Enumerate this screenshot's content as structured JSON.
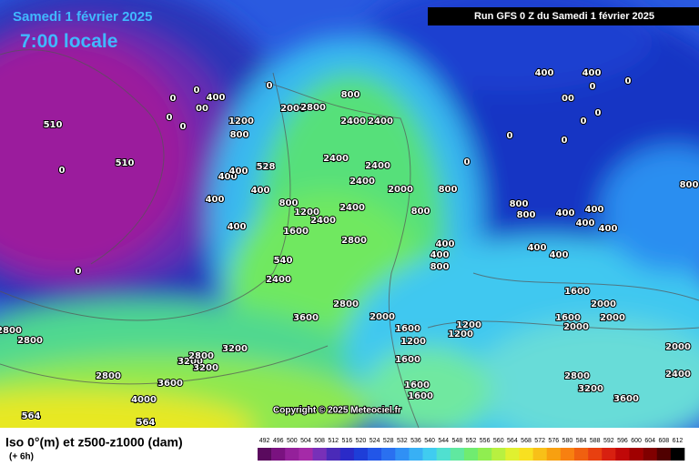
{
  "header": {
    "date": "Samedi 1 février 2025",
    "time": "7:00 locale",
    "run": "Run GFS 0 Z du Samedi 1 février 2025",
    "copyright": "Copyright © 2025 Meteociel.fr"
  },
  "footer": {
    "title": "Iso 0°(m) et z500-z1000 (dam)",
    "step": "(+ 6h)"
  },
  "colorbar": {
    "values": [
      492,
      496,
      500,
      504,
      508,
      512,
      516,
      520,
      524,
      528,
      532,
      536,
      540,
      544,
      548,
      552,
      556,
      560,
      564,
      568,
      572,
      576,
      580,
      584,
      588,
      592,
      596,
      600,
      604,
      608,
      612
    ],
    "colors": [
      "#5a0a5e",
      "#7a1280",
      "#94209a",
      "#a52aa8",
      "#7830b8",
      "#4a2ab8",
      "#2a2ac8",
      "#1e3ed8",
      "#2256e8",
      "#2a70f0",
      "#3090f5",
      "#38b0f5",
      "#40ccf0",
      "#50e0d0",
      "#60e8a0",
      "#70ec70",
      "#90ee50",
      "#b8f040",
      "#e0f030",
      "#f8e020",
      "#f8c018",
      "#f8a010",
      "#f88010",
      "#f06010",
      "#e84010",
      "#d82010",
      "#c00808",
      "#a00000",
      "#800000",
      "#500000",
      "#000000"
    ]
  },
  "map": {
    "contour_labels": [
      "0",
      "0",
      "400",
      "00",
      "0",
      "0",
      "1200",
      "800",
      "2000",
      "2800",
      "800",
      "2400",
      "2400",
      "0",
      "510",
      "510",
      "0",
      "528",
      "400",
      "400",
      "400",
      "400",
      "400",
      "0",
      "2400",
      "2400",
      "2400",
      "800",
      "1200",
      "2400",
      "1600",
      "2800",
      "2000",
      "2400",
      "800",
      "540",
      "2400",
      "2800",
      "3600",
      "2000",
      "1600",
      "1200",
      "1200",
      "1200",
      "1600",
      "1600",
      "1600",
      "2800",
      "2800",
      "3200",
      "3200",
      "3200",
      "2800",
      "2800",
      "3600",
      "4000",
      "564",
      "564",
      "1600",
      "2000",
      "1600",
      "2000",
      "2000",
      "2000",
      "2400",
      "2800",
      "3200",
      "3600",
      "800",
      "800",
      "400",
      "400",
      "400",
      "400",
      "400",
      "400",
      "800",
      "400",
      "400",
      "0",
      "00",
      "0",
      "0",
      "0",
      "0",
      "0",
      "0",
      "800",
      "400",
      "400",
      "800"
    ]
  }
}
